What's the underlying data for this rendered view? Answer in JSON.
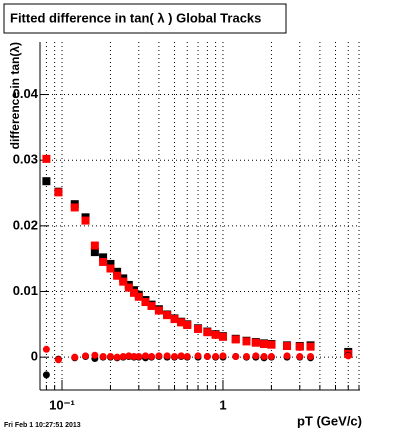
{
  "chart_data": {
    "type": "scatter",
    "title": "Fitted difference in tan( λ )  Global Tracks",
    "y_label": "difference in tan(λ)",
    "x_label": "pT (GeV/c)",
    "footer": "Fri Feb  1 10:27:51 2013",
    "x_log": true,
    "grid": true,
    "xlim": [
      0.073,
      7.1
    ],
    "ylim": [
      -0.005,
      0.048
    ],
    "xticks": [
      {
        "value": 0.1,
        "label": "10⁻¹"
      },
      1
    ],
    "xminorticks": [
      0.08,
      0.09,
      0.2,
      0.3,
      0.4,
      0.5,
      0.6,
      0.7,
      0.8,
      0.9,
      2,
      3,
      4,
      5,
      6,
      7
    ],
    "yticks": [
      0,
      0.01,
      0.02,
      0.03,
      0.04
    ],
    "x": [
      0.08,
      0.095,
      0.12,
      0.14,
      0.16,
      0.18,
      0.2,
      0.22,
      0.24,
      0.26,
      0.28,
      0.3,
      0.33,
      0.36,
      0.4,
      0.45,
      0.5,
      0.55,
      0.6,
      0.7,
      0.8,
      0.9,
      1.0,
      1.2,
      1.4,
      1.6,
      1.8,
      2.0,
      2.5,
      3.0,
      3.5,
      6.0
    ],
    "series": [
      {
        "color": "#000000",
        "values": [
          0.0268,
          0.0252,
          0.0233,
          0.0213,
          0.016,
          0.0152,
          0.0142,
          0.013,
          0.012,
          0.011,
          0.0102,
          0.0095,
          0.0087,
          0.008,
          0.0073,
          0.0065,
          0.0059,
          0.0054,
          0.005,
          0.0044,
          0.0039,
          0.0035,
          0.0032,
          0.0028,
          0.0025,
          0.0023,
          0.0021,
          0.002,
          0.0018,
          0.0017,
          0.0018,
          0.0008
        ]
      },
      {
        "color": "#ff0000",
        "values": [
          0.0302,
          0.0251,
          0.0228,
          0.0208,
          0.017,
          0.0145,
          0.0135,
          0.0124,
          0.0115,
          0.0106,
          0.0098,
          0.0092,
          0.0084,
          0.0078,
          0.0071,
          0.0064,
          0.0058,
          0.0053,
          0.0049,
          0.0043,
          0.0038,
          0.0034,
          0.0031,
          0.0027,
          0.0024,
          0.0022,
          0.002,
          0.0019,
          0.0017,
          0.0016,
          0.0016,
          0.0005
        ]
      },
      {
        "color": "#000000",
        "values": [
          -0.0027,
          -0.0003,
          -0.0001,
          0.0001,
          -0.0002,
          0,
          0,
          -0.0001,
          0,
          0.0001,
          0,
          0,
          -0.0001,
          0,
          0.0001,
          0,
          0,
          0.0001,
          0,
          0,
          0.0001,
          0,
          0,
          0.0001,
          0,
          0,
          -0.0001,
          0,
          0,
          0,
          -0.0001,
          0.0003
        ]
      },
      {
        "color": "#ff0000",
        "values": [
          0.0012,
          -0.0004,
          0,
          0.0002,
          0.0003,
          0.0001,
          0.0001,
          0,
          0.0001,
          0.0002,
          0.0001,
          0.0001,
          0.0002,
          0.0001,
          0.0002,
          0.0002,
          0.0001,
          0.0002,
          0.0001,
          0.0002,
          0.0001,
          0.0001,
          0.0002,
          0.0001,
          0.0001,
          0.0002,
          0.0001,
          0.0001,
          0.0002,
          0.0001,
          0.0001,
          0.0002
        ]
      }
    ]
  }
}
